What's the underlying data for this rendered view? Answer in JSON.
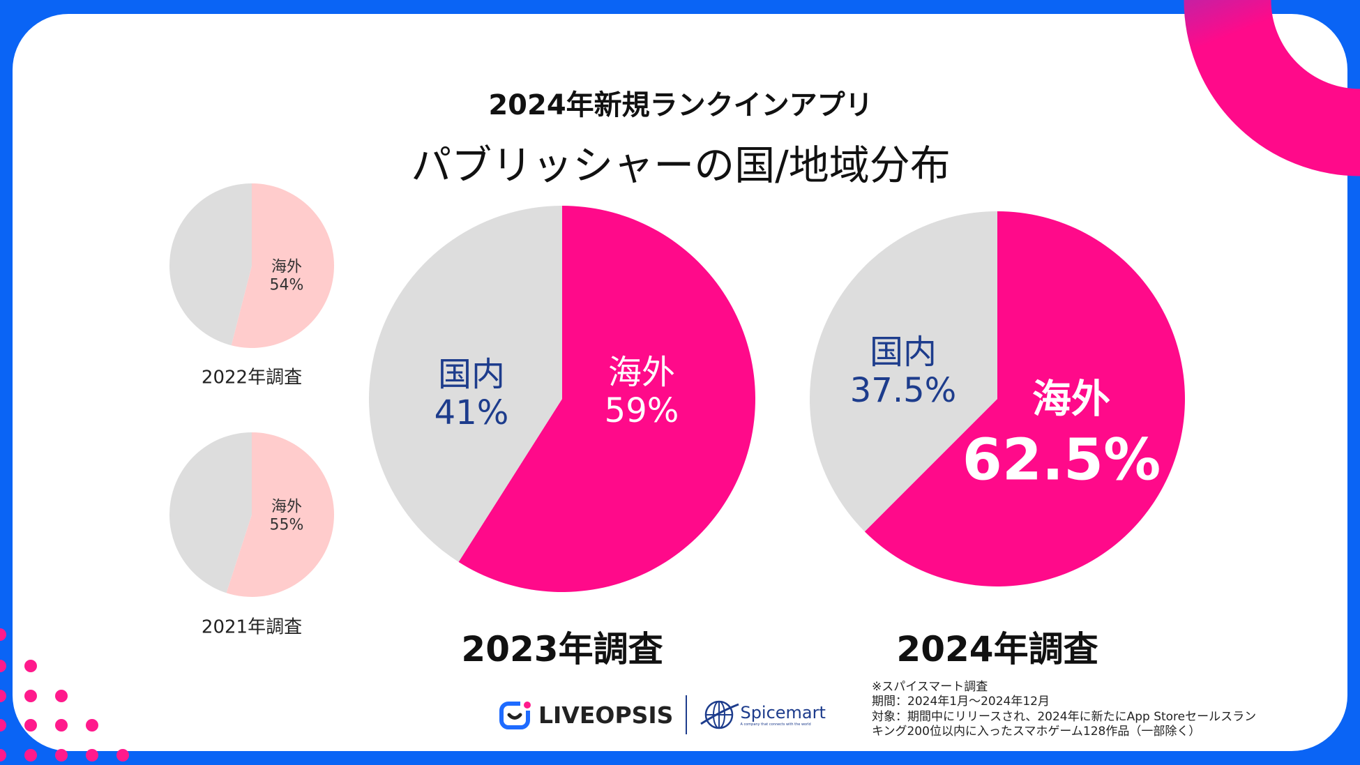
{
  "header": {
    "title": "2024年新規ランクインアプリ",
    "subtitle": "パブリッシャーの国/地域分布"
  },
  "colors": {
    "overseas_main": "#ff0a8a",
    "overseas_small": "#ffcccc",
    "domestic": "#dddddd",
    "text_navy": "#1d3c8c",
    "frame": "#0a64f5"
  },
  "chart_data": [
    {
      "type": "pie",
      "title": "2022年調査",
      "slices": [
        {
          "name": "海外",
          "value": 54
        },
        {
          "name": "国内",
          "value": 46
        }
      ],
      "labels": [
        "海外",
        "54%"
      ]
    },
    {
      "type": "pie",
      "title": "2021年調査",
      "slices": [
        {
          "name": "海外",
          "value": 55
        },
        {
          "name": "国内",
          "value": 45
        }
      ],
      "labels": [
        "海外",
        "55%"
      ]
    },
    {
      "type": "pie",
      "title": "2023年調査",
      "slices": [
        {
          "name": "海外",
          "value": 59
        },
        {
          "name": "国内",
          "value": 41
        }
      ],
      "labels": [
        "海外",
        "59%",
        "国内",
        "41%"
      ]
    },
    {
      "type": "pie",
      "title": "2024年調査",
      "slices": [
        {
          "name": "海外",
          "value": 62.5
        },
        {
          "name": "国内",
          "value": 37.5
        }
      ],
      "labels": [
        "海外",
        "62.5%",
        "国内",
        "37.5%"
      ]
    }
  ],
  "logos": {
    "liveopsis": "LIVEOPSIS",
    "spicemart": "Spicemart",
    "spicemart_tagline": "A company that connects with the world"
  },
  "footnote": [
    "※スパイスマート調査",
    "期間：2024年1月〜2024年12月",
    "対象：期間中にリリースされ、2024年に新たにApp Storeセールスラン",
    "キング200位以内に入ったスマホゲーム128作品（一部除く）"
  ]
}
